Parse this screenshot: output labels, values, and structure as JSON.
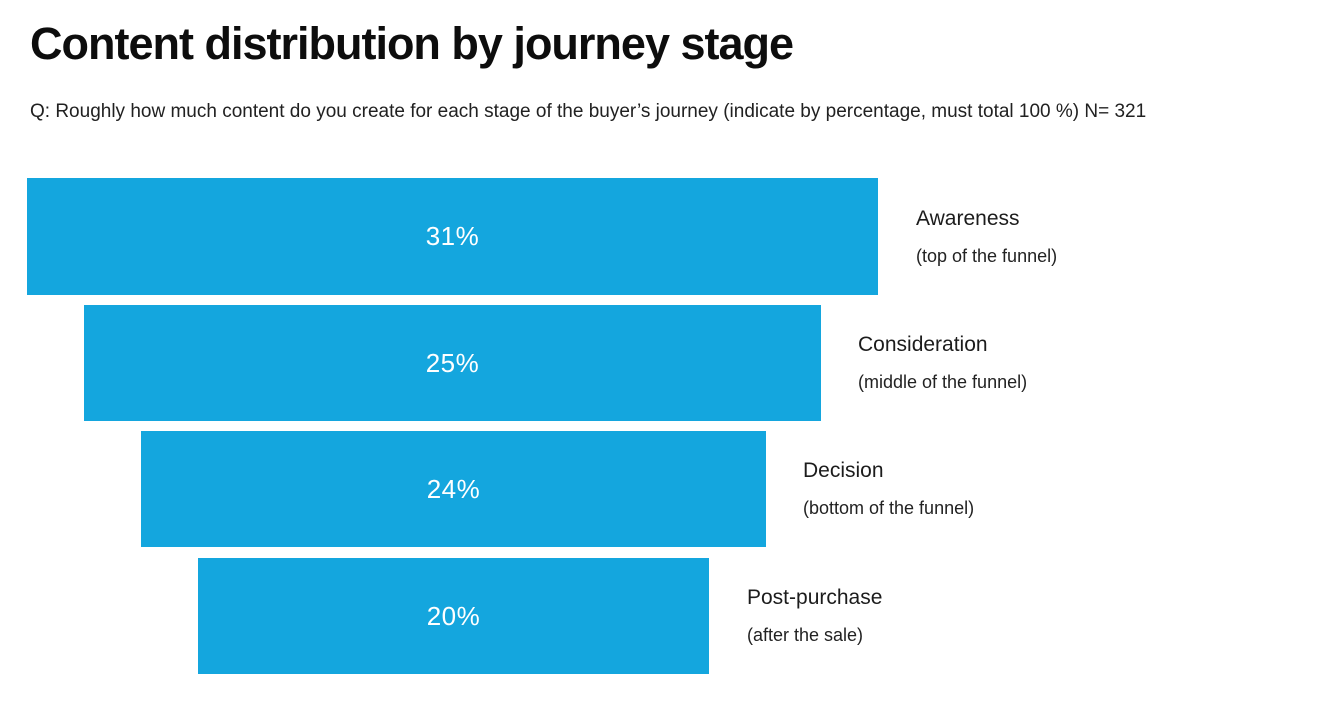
{
  "header": {
    "title": "Content distribution by journey stage",
    "subtitle": "Q: Roughly how much content do you create for each stage of the buyer’s journey (indicate by percentage, must total 100 %) N= 321"
  },
  "chart_data": {
    "type": "bar",
    "variant": "horizontal-centered-funnel",
    "title": "Content distribution by journey stage",
    "unit": "percent",
    "sample_size": "N= 321",
    "categories": [
      "Awareness",
      "Consideration",
      "Decision",
      "Post-purchase"
    ],
    "values": [
      31,
      25,
      24,
      20
    ],
    "stages": [
      {
        "label": "Awareness",
        "sublabel": "(top of the funnel)",
        "value": 31,
        "value_label": "31%"
      },
      {
        "label": "Consideration",
        "sublabel": "(middle of the funnel)",
        "value": 25,
        "value_label": "25%"
      },
      {
        "label": "Decision",
        "sublabel": "(bottom of the funnel)",
        "value": 24,
        "value_label": "24%"
      },
      {
        "label": "Post-purchase",
        "sublabel": "(after the sale)",
        "value": 20,
        "value_label": "20%"
      }
    ],
    "colors": {
      "bar": "#14a6de",
      "value_text": "#ffffff",
      "label_text": "#1c1c1c",
      "title_text": "#0d0d0d",
      "background": "#ffffff"
    },
    "legend": false,
    "grid": false
  }
}
